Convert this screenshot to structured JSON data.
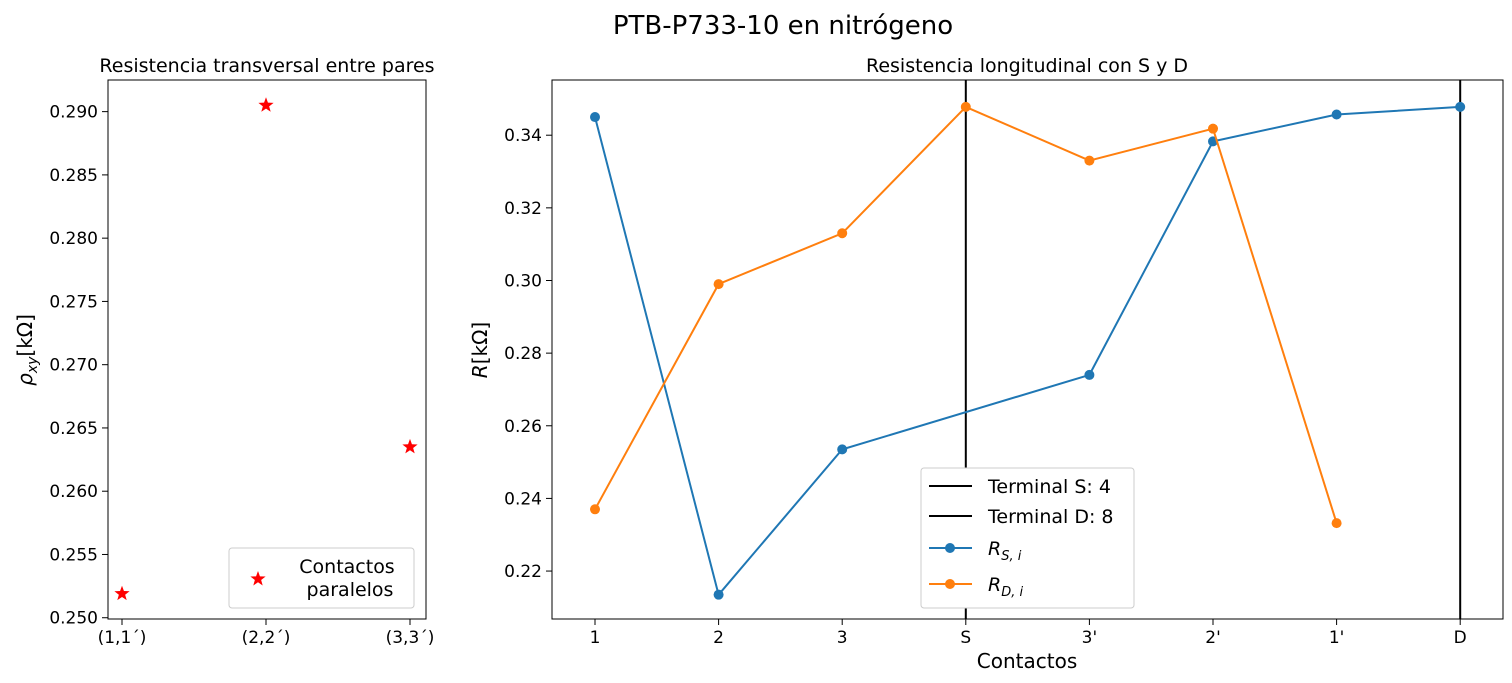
{
  "suptitle": "PTB-P733-10 en nitrógeno",
  "chart_data": [
    {
      "type": "scatter",
      "title": "Resistencia transversal entre pares",
      "xlabel": "",
      "ylabel": "ρxy[kΩ]",
      "ylabel_main": "ρ",
      "ylabel_sub": "xy",
      "ylabel_unit": "[kΩ]",
      "categories": [
        "(1,1´)",
        "(2,2´)",
        "(3,3´)"
      ],
      "ylim": [
        0.2499,
        0.2925
      ],
      "yticks": [
        "0.250",
        "0.255",
        "0.260",
        "0.265",
        "0.270",
        "0.275",
        "0.280",
        "0.285",
        "0.290"
      ],
      "series": [
        {
          "name": "Contactos paralelos",
          "values": [
            0.2519,
            0.2905,
            0.2635
          ],
          "color": "#ff0000",
          "marker": "star"
        }
      ],
      "legend": {
        "position": "lower right",
        "lines": [
          "Contactos",
          "paralelos"
        ]
      },
      "grid": false
    },
    {
      "type": "line",
      "title": "Resistencia longitudinal con S y D",
      "xlabel": "Contactos",
      "ylabel": "R[kΩ]",
      "categories": [
        "1",
        "2",
        "3",
        "S",
        "3'",
        "2'",
        "1'",
        "D"
      ],
      "ylim": [
        0.2068,
        0.3552
      ],
      "yticks": [
        "0.22",
        "0.24",
        "0.26",
        "0.28",
        "0.30",
        "0.32",
        "0.34"
      ],
      "vlines": [
        {
          "label": "Terminal S: 4",
          "category": "S",
          "color": "#000000"
        },
        {
          "label": "Terminal D: 8",
          "category": "D",
          "color": "#000000"
        }
      ],
      "series": [
        {
          "name": "R_{S,i}",
          "name_main": "R",
          "name_sub": "S, i",
          "color": "#1f77b4",
          "values": [
            0.345,
            0.2135,
            0.2535,
            null,
            0.274,
            0.3383,
            0.3457,
            0.3478
          ]
        },
        {
          "name": "R_{D,i}",
          "name_main": "R",
          "name_sub": "D, i",
          "color": "#ff7f0e",
          "values": [
            0.237,
            0.299,
            0.313,
            0.3478,
            0.333,
            0.3418,
            0.2332,
            null
          ]
        }
      ],
      "legend": {
        "position": "lower center"
      },
      "grid": false
    }
  ]
}
